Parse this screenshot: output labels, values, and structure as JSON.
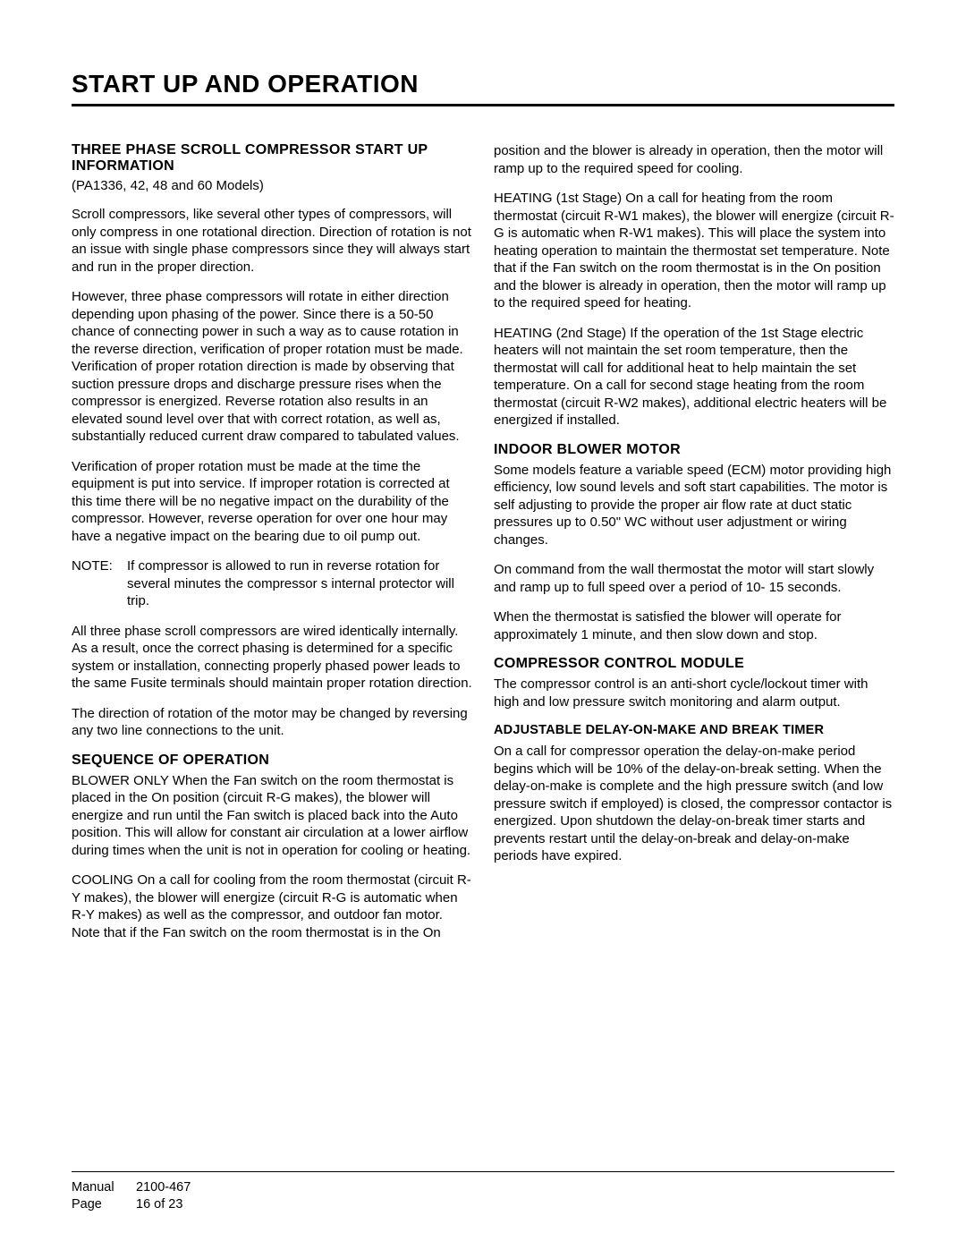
{
  "title": "START UP AND OPERATION",
  "left": {
    "h1": "THREE PHASE SCROLL COMPRESSOR START UP INFORMATION",
    "models": "(PA1336, 42, 48 and 60 Models)",
    "p1": "Scroll compressors, like several other types of compressors, will only compress in one rotational direction.  Direction of rotation is not an issue with single phase compressors since they will always start and run in the proper direction.",
    "p2": "However, three phase compressors will rotate in either direction depending upon phasing of the power.  Since there is a 50-50 chance of connecting power in such a way as to cause rotation in the reverse direction, verification of proper rotation must be made.  Verification of proper rotation direction is made by observing that suction pressure drops and discharge pressure rises when the compressor is energized.  Reverse rotation also results in an elevated sound level over that with correct rotation, as well as, substantially reduced current draw compared to tabulated values.",
    "p3": "Verification of proper rotation must be made at the time the equipment is put into service.  If improper rotation is corrected at this time there will be no negative impact on the durability of the compressor.  However, reverse operation for over one hour may have a negative impact on the bearing due to oil pump out.",
    "note_label": "NOTE:",
    "note_body": "If compressor is allowed to run in reverse rotation for several minutes the compressor s internal protector will trip.",
    "p4": "All three phase scroll compressors are wired identically internally.  As a result, once the correct phasing is determined for a specific system or installation, connecting properly phased power leads to the same Fusite terminals should maintain proper rotation direction.",
    "p5": "The direction of rotation of the motor may be changed by reversing any two line connections to the unit.",
    "h2": "SEQUENCE OF OPERATION",
    "p6": "BLOWER ONLY      When the  Fan  switch on the room thermostat is placed in the  On  position (circuit R-G makes), the blower will energize and run until the  Fan  switch is placed back into the  Auto  position.  This will allow for constant air circulation at a lower airflow during times when the unit is not in operation for cooling or heating.",
    "p7": "COOLING      On a call for cooling from the room thermostat (circuit R-Y makes), the blower will energize (circuit R-G is automatic when R-Y makes) as well as the compressor, and outdoor fan motor.  Note that if the  Fan  switch on the room thermostat is in the  On"
  },
  "right": {
    "p1": "position and the blower is already in operation, then the motor will ramp up to the required speed for cooling.",
    "p2": "HEATING (1st Stage)      On a call for heating from the room thermostat (circuit R-W1 makes), the blower will energize (circuit R-G is automatic when R-W1 makes).  This will place the system into heating operation to maintain the thermostat set temperature.  Note that if the  Fan  switch on the room thermostat is in the  On  position and the blower is already in operation, then the motor will ramp up to the required speed for heating.",
    "p3": "HEATING (2nd Stage)      If the operation of the 1st Stage electric heaters will not maintain the set room temperature, then the thermostat will call for additional heat to help maintain the set temperature.  On a call for second stage heating from the room thermostat (circuit R-W2 makes), additional electric heaters will be energized if installed.",
    "h1": "INDOOR BLOWER MOTOR",
    "p4": "Some models feature a variable speed (ECM) motor providing high efficiency, low sound levels and soft start capabilities.  The motor is self adjusting to provide the proper air flow rate at duct static pressures up to 0.50\" WC without user adjustment or wiring changes.",
    "p5": "On command from the wall thermostat the motor will start slowly and ramp up to full speed over a period of 10- 15 seconds.",
    "p6": "When the thermostat is satisfied the blower will operate for approximately 1 minute, and then slow down and stop.",
    "h2": "COMPRESSOR CONTROL MODULE",
    "p7": "The compressor control is an anti-short cycle/lockout timer with high and low pressure switch monitoring and alarm output.",
    "sub1": "ADJUSTABLE DELAY-ON-MAKE AND BREAK TIMER",
    "p8": "On a call for compressor operation the delay-on-make period begins which will be 10% of the delay-on-break setting.  When the delay-on-make is complete and the high pressure switch (and low pressure switch if employed) is closed, the compressor contactor is energized.  Upon shutdown the delay-on-break timer starts and prevents restart until the delay-on-break and delay-on-make periods have expired."
  },
  "footer": {
    "manual_label": "Manual",
    "manual_value": "2100-467",
    "page_label": "Page",
    "page_value": "16 of 23"
  }
}
